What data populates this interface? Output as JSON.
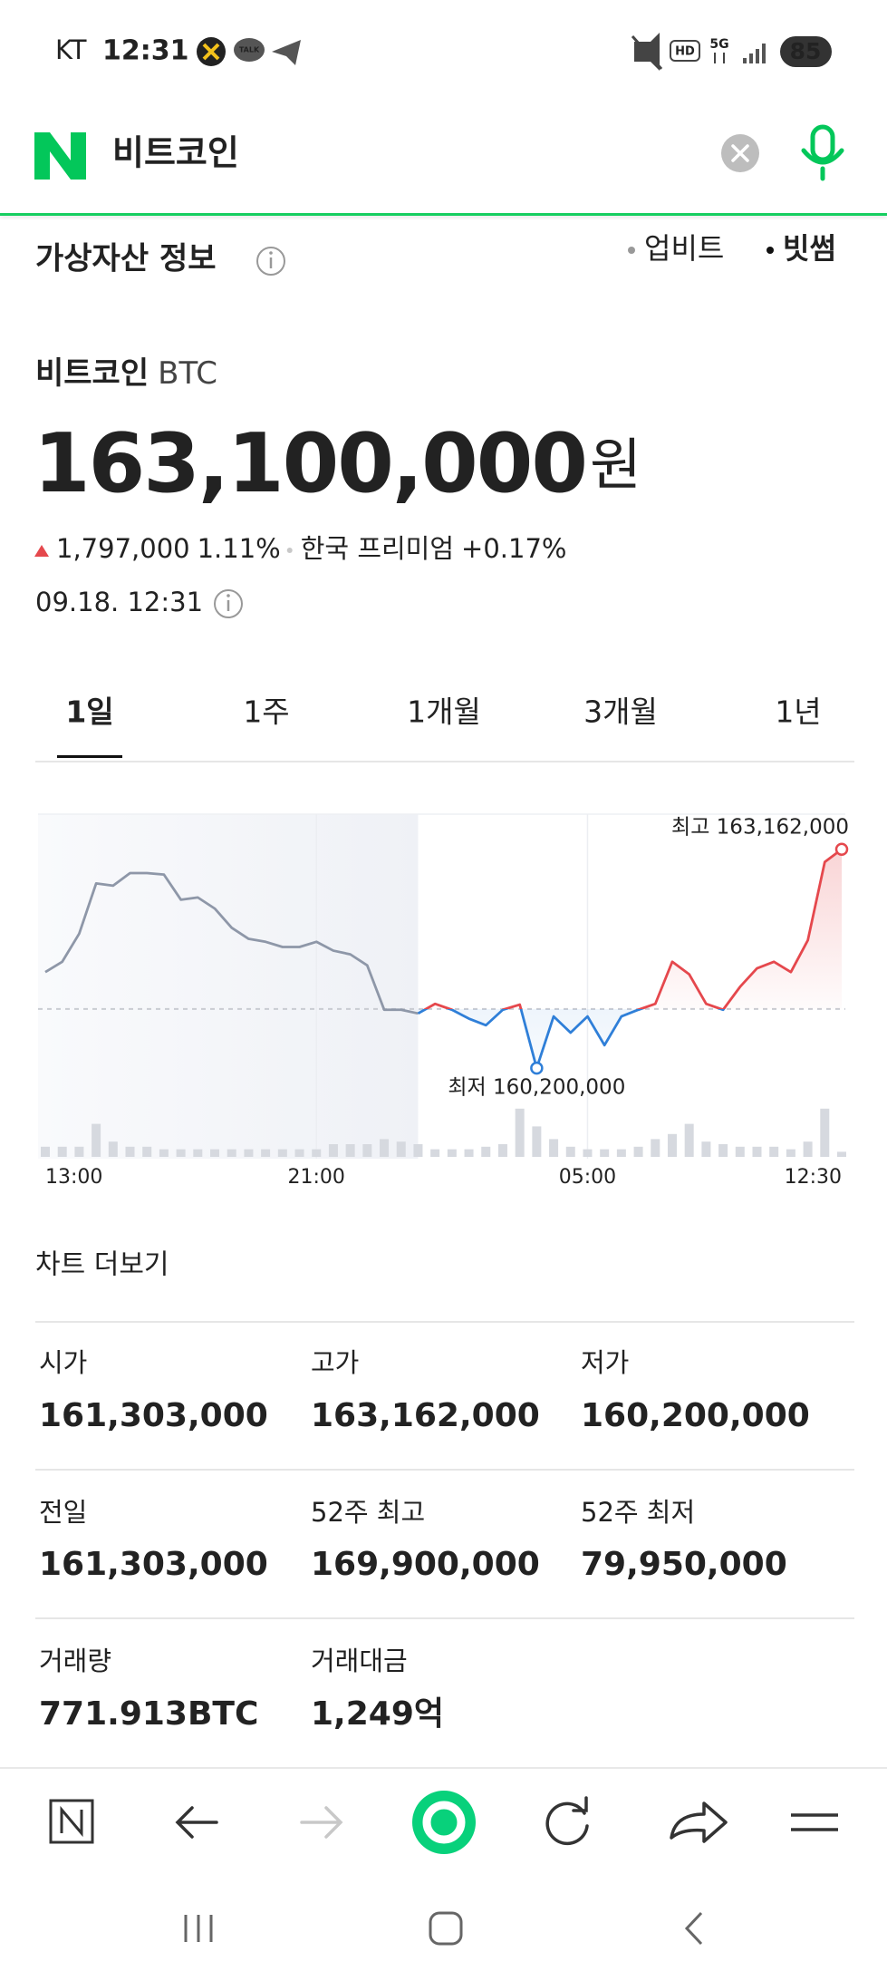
{
  "status_bar": {
    "carrier": "KT",
    "time": "12:31",
    "talk_icon": "TALK",
    "hd": "HD",
    "network": "5G",
    "battery": "85"
  },
  "search": {
    "query": "비트코인"
  },
  "section": {
    "title": "가상자산 정보",
    "exchanges": [
      "업비트",
      "빗썸"
    ],
    "selected_exchange": 1
  },
  "asset": {
    "name": "비트코인",
    "symbol": "BTC",
    "price": "163,100,000",
    "unit": "원",
    "change": "1,797,000",
    "change_pct": "1.11%",
    "premium_label": "한국 프리미엄",
    "premium": "+0.17%",
    "timestamp": "09.18. 12:31"
  },
  "tabs": {
    "items": [
      "1일",
      "1주",
      "1개월",
      "3개월",
      "1년"
    ],
    "selected": 0
  },
  "chart_data": {
    "type": "line",
    "categories": [
      "13:00",
      null,
      null,
      null,
      null,
      null,
      null,
      null,
      null,
      null,
      null,
      null,
      null,
      null,
      null,
      null,
      "21:00",
      null,
      null,
      null,
      null,
      null,
      null,
      null,
      null,
      null,
      null,
      null,
      null,
      null,
      null,
      null,
      "05:00",
      null,
      null,
      null,
      null,
      null,
      null,
      null,
      null,
      null,
      null,
      null,
      null,
      null,
      null,
      "12:30"
    ],
    "series": [
      {
        "color": "#8e97a8",
        "values": [
          161500000,
          161640000,
          162020000,
          162700000,
          162670000,
          162840000,
          162840000,
          162820000,
          162480000,
          162510000,
          162360000,
          162100000,
          161950000,
          161910000,
          161840000,
          161840000,
          161910000,
          161790000,
          161740000,
          161590000,
          160990000,
          160990000,
          160940000,
          null,
          null,
          null,
          null,
          null,
          null,
          null,
          null,
          null,
          null,
          null,
          null,
          null,
          null,
          null,
          null,
          null,
          null,
          null,
          null,
          null,
          null,
          null,
          null,
          null
        ]
      },
      {
        "color": "#e5484d",
        "color_below": "#2f7fd8",
        "values": [
          null,
          null,
          null,
          null,
          null,
          null,
          null,
          null,
          null,
          null,
          null,
          null,
          null,
          null,
          null,
          null,
          null,
          null,
          null,
          null,
          null,
          null,
          160940000,
          161070000,
          160990000,
          160870000,
          160780000,
          160990000,
          161060000,
          160200000,
          160900000,
          160680000,
          160900000,
          160510000,
          160900000,
          160990000,
          161070000,
          161640000,
          161470000,
          161070000,
          160990000,
          161300000,
          161550000,
          161640000,
          161500000,
          161930000,
          162990000,
          163162000
        ]
      }
    ],
    "reference": 161000000,
    "ylim": [
      159600000,
      163650000
    ],
    "x_grid": true,
    "annotations": {
      "high": "최고 163,162,000",
      "low": "최저 160,200,000"
    },
    "volume": {
      "color": "#d6d9df",
      "ylim": [
        0,
        40
      ],
      "values": [
        8,
        8,
        8,
        26,
        12,
        8,
        8,
        6,
        6,
        6,
        6,
        6,
        6,
        6,
        6,
        6,
        6,
        10,
        10,
        10,
        14,
        12,
        10,
        6,
        6,
        6,
        8,
        10,
        38,
        24,
        14,
        8,
        6,
        6,
        6,
        8,
        14,
        18,
        26,
        12,
        10,
        8,
        8,
        8,
        6,
        12,
        38,
        4
      ]
    }
  },
  "more_link": "차트 더보기",
  "stats": [
    [
      {
        "label": "시가",
        "value": "161,303,000"
      },
      {
        "label": "고가",
        "value": "163,162,000",
        "color": "#e5484d"
      },
      {
        "label": "저가",
        "value": "160,200,000",
        "color": "#2f6fd0"
      }
    ],
    [
      {
        "label": "전일",
        "value": "161,303,000"
      },
      {
        "label": "52주 최고",
        "value": "169,900,000"
      },
      {
        "label": "52주 최저",
        "value": "79,950,000"
      }
    ],
    [
      {
        "label": "거래량",
        "value": "771.913BTC"
      },
      {
        "label": "거래대금",
        "value": "1,249억"
      }
    ]
  ]
}
